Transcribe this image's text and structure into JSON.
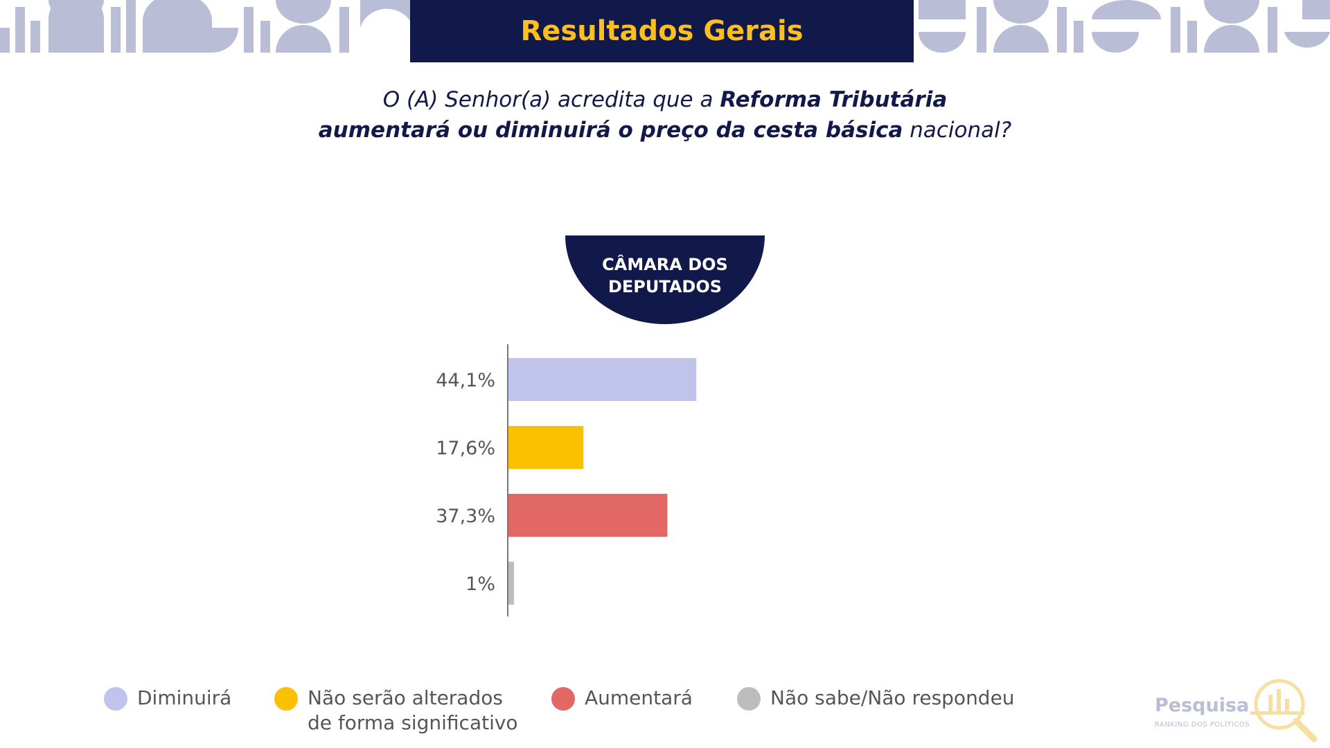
{
  "header": {
    "title": "Resultados Gerais"
  },
  "question": {
    "part1": "O (A) Senhor(a) acredita que a ",
    "part2_bold": "Reforma Tributária",
    "part3_bold": "aumentará ou diminuirá o preço da cesta básica",
    "part4": " nacional?"
  },
  "badge": {
    "label": "CÂMARA DOS\nDEPUTADOS"
  },
  "chart_data": {
    "type": "bar",
    "orientation": "horizontal",
    "categories": [
      "Diminuirá",
      "Não serão alterados de forma significativo",
      "Aumentará",
      "Não sabe/Não respondeu"
    ],
    "values": [
      44.1,
      17.6,
      37.3,
      1
    ],
    "value_labels": [
      "44,1%",
      "17,6%",
      "37,3%",
      "1%"
    ],
    "colors": [
      "#c0c4ea",
      "#fbc000",
      "#e26866",
      "#bdbdbd"
    ],
    "xlim": [
      0,
      100
    ],
    "grid": false,
    "legend_position": "bottom"
  },
  "legend": {
    "items": [
      {
        "label": "Diminuirá",
        "color": "#c0c4ea"
      },
      {
        "label": "Não serão alterados\nde forma significativo",
        "color": "#fbc000"
      },
      {
        "label": "Aumentará",
        "color": "#e26866"
      },
      {
        "label": "Não sabe/Não respondeu",
        "color": "#bdbdbd"
      }
    ]
  },
  "logo": {
    "name": "Pesquisa",
    "subtitle": "RANKING DOS POLÍTICOS"
  },
  "colors": {
    "navy": "#11184a",
    "gold": "#fbbf1f",
    "decor": "#b9bdd6"
  }
}
